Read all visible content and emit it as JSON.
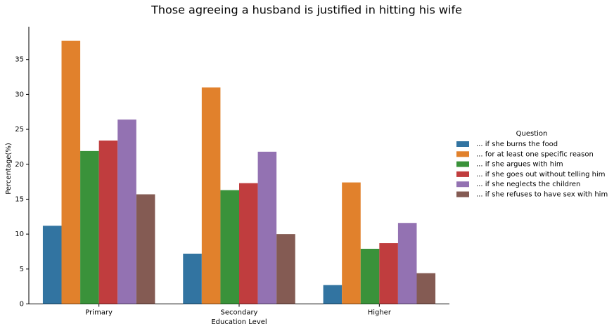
{
  "chart_data": {
    "type": "bar",
    "title": "Those agreeing a husband is justified in hitting his wife",
    "x_label": "Education Level",
    "y_label": "Percentage(%)",
    "legend_title": "Question",
    "legend_position": "right",
    "categories": [
      "Primary",
      "Secondary",
      "Higher"
    ],
    "series": [
      {
        "name": "... if she burns the food",
        "color": "#3274a1",
        "values": [
          11.2,
          7.2,
          2.7
        ]
      },
      {
        "name": "... for at least one specific reason",
        "color": "#e1812c",
        "values": [
          37.7,
          31.0,
          17.4
        ]
      },
      {
        "name": "... if she argues with him",
        "color": "#3a923a",
        "values": [
          21.9,
          16.3,
          7.9
        ]
      },
      {
        "name": "... if she goes out without telling him",
        "color": "#c03d3e",
        "values": [
          23.4,
          17.3,
          8.7
        ]
      },
      {
        "name": "... if she neglects the children",
        "color": "#9372b2",
        "values": [
          26.4,
          21.8,
          11.6
        ]
      },
      {
        "name": "... if she refuses to have sex with him",
        "color": "#845b53",
        "values": [
          15.7,
          10.0,
          4.4
        ]
      }
    ],
    "ylim": [
      0,
      39.7
    ],
    "yticks": [
      0,
      5,
      10,
      15,
      20,
      25,
      30,
      35
    ]
  }
}
